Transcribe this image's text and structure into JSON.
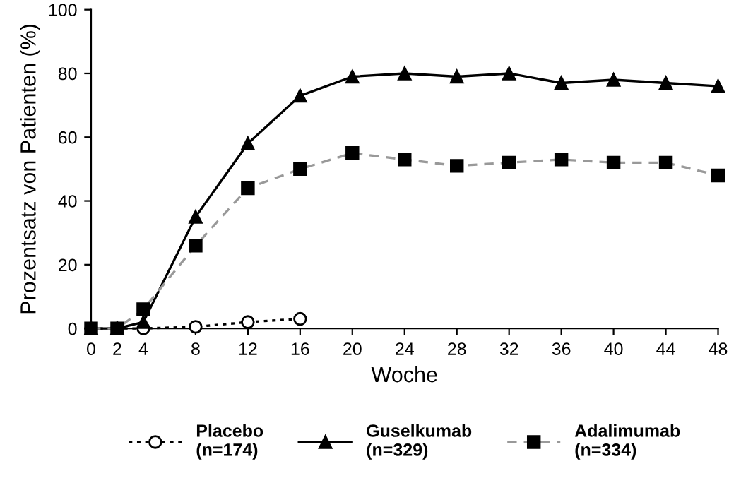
{
  "chart_data": {
    "type": "line",
    "xlabel": "Woche",
    "ylabel": "Prozentsatz von Patienten (%)",
    "xlim": [
      0,
      48
    ],
    "xticks": [
      0,
      2,
      4,
      8,
      12,
      16,
      20,
      24,
      28,
      32,
      36,
      40,
      44,
      48
    ],
    "ylim": [
      0,
      100
    ],
    "yticks": [
      0,
      20,
      40,
      60,
      80,
      100
    ],
    "grid": false,
    "legend": "bottom",
    "series": [
      {
        "name": "Placebo\n(n=174)",
        "color": "#000000",
        "marker": "circle",
        "line_style": "dotted",
        "x": [
          0,
          2,
          4,
          8,
          12,
          16
        ],
        "values": [
          0,
          0,
          0,
          0.5,
          2,
          3
        ]
      },
      {
        "name": "Guselkumab\n(n=329)",
        "color": "#000000",
        "marker": "triangle",
        "line_style": "solid",
        "x": [
          0,
          2,
          4,
          8,
          12,
          16,
          20,
          24,
          28,
          32,
          36,
          40,
          44,
          48
        ],
        "values": [
          0,
          0,
          2,
          35,
          58,
          73,
          79,
          80,
          79,
          80,
          77,
          78,
          77,
          76
        ]
      },
      {
        "name": "Adalimumab\n(n=334)",
        "color": "#000000",
        "marker": "square",
        "line_style": "dashed",
        "x": [
          0,
          2,
          4,
          8,
          12,
          16,
          20,
          24,
          28,
          32,
          36,
          40,
          44,
          48
        ],
        "values": [
          0,
          0,
          6,
          26,
          44,
          50,
          55,
          53,
          51,
          52,
          53,
          52,
          52,
          48
        ]
      }
    ]
  }
}
